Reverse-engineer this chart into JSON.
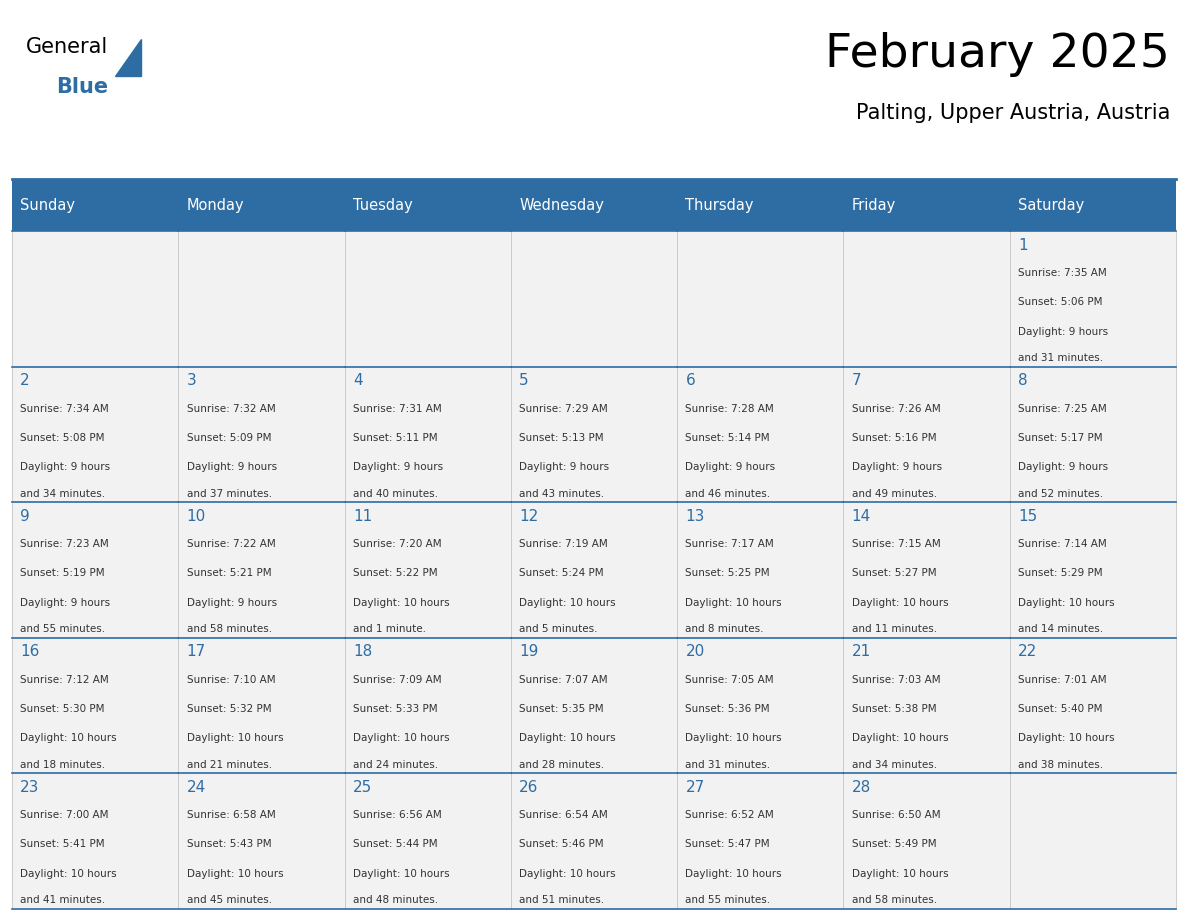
{
  "title": "February 2025",
  "subtitle": "Palting, Upper Austria, Austria",
  "header_bg": "#2E6DA4",
  "header_text": "#FFFFFF",
  "cell_bg": "#F2F2F2",
  "border_color": "#2E6DA4",
  "days_of_week": [
    "Sunday",
    "Monday",
    "Tuesday",
    "Wednesday",
    "Thursday",
    "Friday",
    "Saturday"
  ],
  "day_number_color": "#2E6DA4",
  "text_color": "#333333",
  "calendar_data": [
    [
      null,
      null,
      null,
      null,
      null,
      null,
      {
        "day": 1,
        "sunrise": "7:35 AM",
        "sunset": "5:06 PM",
        "daylight": "9 hours and 31 minutes."
      }
    ],
    [
      {
        "day": 2,
        "sunrise": "7:34 AM",
        "sunset": "5:08 PM",
        "daylight": "9 hours and 34 minutes."
      },
      {
        "day": 3,
        "sunrise": "7:32 AM",
        "sunset": "5:09 PM",
        "daylight": "9 hours and 37 minutes."
      },
      {
        "day": 4,
        "sunrise": "7:31 AM",
        "sunset": "5:11 PM",
        "daylight": "9 hours and 40 minutes."
      },
      {
        "day": 5,
        "sunrise": "7:29 AM",
        "sunset": "5:13 PM",
        "daylight": "9 hours and 43 minutes."
      },
      {
        "day": 6,
        "sunrise": "7:28 AM",
        "sunset": "5:14 PM",
        "daylight": "9 hours and 46 minutes."
      },
      {
        "day": 7,
        "sunrise": "7:26 AM",
        "sunset": "5:16 PM",
        "daylight": "9 hours and 49 minutes."
      },
      {
        "day": 8,
        "sunrise": "7:25 AM",
        "sunset": "5:17 PM",
        "daylight": "9 hours and 52 minutes."
      }
    ],
    [
      {
        "day": 9,
        "sunrise": "7:23 AM",
        "sunset": "5:19 PM",
        "daylight": "9 hours and 55 minutes."
      },
      {
        "day": 10,
        "sunrise": "7:22 AM",
        "sunset": "5:21 PM",
        "daylight": "9 hours and 58 minutes."
      },
      {
        "day": 11,
        "sunrise": "7:20 AM",
        "sunset": "5:22 PM",
        "daylight": "10 hours and 1 minute."
      },
      {
        "day": 12,
        "sunrise": "7:19 AM",
        "sunset": "5:24 PM",
        "daylight": "10 hours and 5 minutes."
      },
      {
        "day": 13,
        "sunrise": "7:17 AM",
        "sunset": "5:25 PM",
        "daylight": "10 hours and 8 minutes."
      },
      {
        "day": 14,
        "sunrise": "7:15 AM",
        "sunset": "5:27 PM",
        "daylight": "10 hours and 11 minutes."
      },
      {
        "day": 15,
        "sunrise": "7:14 AM",
        "sunset": "5:29 PM",
        "daylight": "10 hours and 14 minutes."
      }
    ],
    [
      {
        "day": 16,
        "sunrise": "7:12 AM",
        "sunset": "5:30 PM",
        "daylight": "10 hours and 18 minutes."
      },
      {
        "day": 17,
        "sunrise": "7:10 AM",
        "sunset": "5:32 PM",
        "daylight": "10 hours and 21 minutes."
      },
      {
        "day": 18,
        "sunrise": "7:09 AM",
        "sunset": "5:33 PM",
        "daylight": "10 hours and 24 minutes."
      },
      {
        "day": 19,
        "sunrise": "7:07 AM",
        "sunset": "5:35 PM",
        "daylight": "10 hours and 28 minutes."
      },
      {
        "day": 20,
        "sunrise": "7:05 AM",
        "sunset": "5:36 PM",
        "daylight": "10 hours and 31 minutes."
      },
      {
        "day": 21,
        "sunrise": "7:03 AM",
        "sunset": "5:38 PM",
        "daylight": "10 hours and 34 minutes."
      },
      {
        "day": 22,
        "sunrise": "7:01 AM",
        "sunset": "5:40 PM",
        "daylight": "10 hours and 38 minutes."
      }
    ],
    [
      {
        "day": 23,
        "sunrise": "7:00 AM",
        "sunset": "5:41 PM",
        "daylight": "10 hours and 41 minutes."
      },
      {
        "day": 24,
        "sunrise": "6:58 AM",
        "sunset": "5:43 PM",
        "daylight": "10 hours and 45 minutes."
      },
      {
        "day": 25,
        "sunrise": "6:56 AM",
        "sunset": "5:44 PM",
        "daylight": "10 hours and 48 minutes."
      },
      {
        "day": 26,
        "sunrise": "6:54 AM",
        "sunset": "5:46 PM",
        "daylight": "10 hours and 51 minutes."
      },
      {
        "day": 27,
        "sunrise": "6:52 AM",
        "sunset": "5:47 PM",
        "daylight": "10 hours and 55 minutes."
      },
      {
        "day": 28,
        "sunrise": "6:50 AM",
        "sunset": "5:49 PM",
        "daylight": "10 hours and 58 minutes."
      },
      null
    ]
  ]
}
